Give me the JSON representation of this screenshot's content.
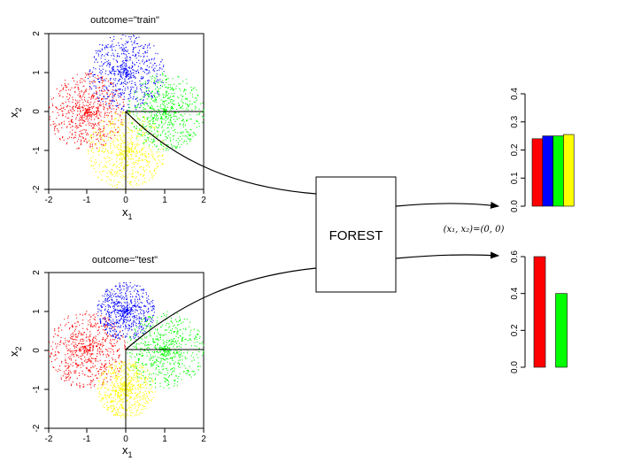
{
  "forest_label": "FOREST",
  "query_point": "(x₁, x₂)=(0, 0)",
  "scatter_panels": [
    {
      "id": "train",
      "title": "outcome=\"train\"",
      "xlabel_main": "x",
      "xlabel_sub": "1",
      "ylabel_main": "x",
      "ylabel_sub": "2",
      "xticks": [
        "-2",
        "-1",
        "0",
        "1",
        "2"
      ],
      "yticks": [
        "-2",
        "-1",
        "0",
        "1",
        "2"
      ],
      "clusters": [
        {
          "color": "#ff0000",
          "center": [
            -1,
            0
          ],
          "radius": 1
        },
        {
          "color": "#0000ff",
          "center": [
            0,
            1
          ],
          "radius": 1
        },
        {
          "color": "#00ff00",
          "center": [
            1,
            0
          ],
          "radius": 1
        },
        {
          "color": "#ffff00",
          "center": [
            0,
            -1
          ],
          "radius": 1
        }
      ]
    },
    {
      "id": "test",
      "title": "outcome=\"test\"",
      "xlabel_main": "x",
      "xlabel_sub": "1",
      "ylabel_main": "x",
      "ylabel_sub": "2",
      "xticks": [
        "-2",
        "-1",
        "0",
        "1",
        "2"
      ],
      "yticks": [
        "-2",
        "-1",
        "0",
        "1",
        "2"
      ],
      "clusters": [
        {
          "color": "#ff0000",
          "center": [
            -1,
            0
          ],
          "radius": 1
        },
        {
          "color": "#0000ff",
          "center": [
            0,
            1
          ],
          "radius": 0.75
        },
        {
          "color": "#00ff00",
          "center": [
            1,
            0
          ],
          "radius": 1
        },
        {
          "color": "#ffff00",
          "center": [
            0,
            -1
          ],
          "radius": 0.75
        }
      ]
    }
  ],
  "chart_data": [
    {
      "type": "bar",
      "categories": [
        "red",
        "blue",
        "green",
        "yellow"
      ],
      "colors": [
        "#ff0000",
        "#0000ff",
        "#00ff00",
        "#ffff00"
      ],
      "values": [
        0.24,
        0.25,
        0.25,
        0.255
      ],
      "ylim": [
        0,
        0.4
      ],
      "yticks": [
        "0.0",
        "0.1",
        "0.2",
        "0.3",
        "0.4"
      ]
    },
    {
      "type": "bar",
      "categories": [
        "red",
        "green"
      ],
      "colors": [
        "#ff0000",
        "#00ff00"
      ],
      "values": [
        0.6,
        0.4
      ],
      "ylim": [
        0,
        0.6
      ],
      "yticks": [
        "0.0",
        "0.2",
        "0.4",
        "0.6"
      ]
    }
  ]
}
